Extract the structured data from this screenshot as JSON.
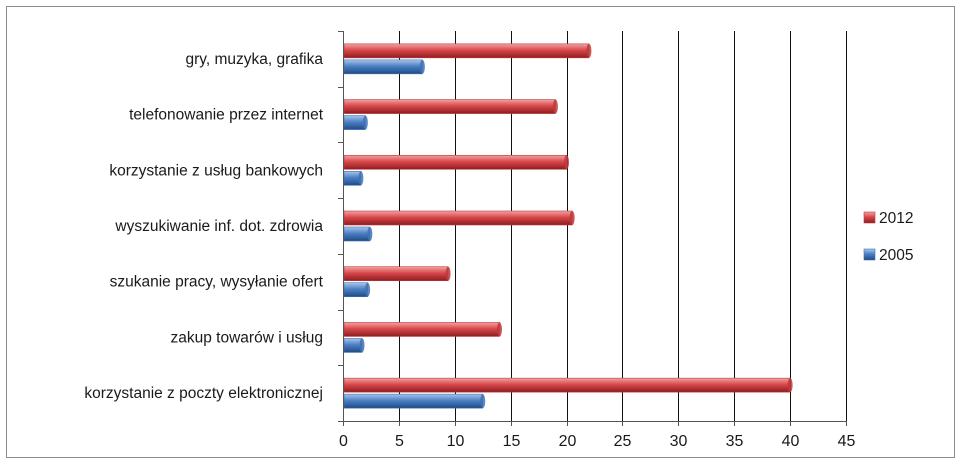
{
  "chart_data": {
    "type": "bar",
    "orientation": "horizontal",
    "title": "",
    "xlabel": "",
    "ylabel": "",
    "categories": [
      "gry, muzyka, grafika",
      "telefonowanie przez internet",
      "korzystanie z usług bankowych",
      "wyszukiwanie inf. dot. zdrowia",
      "szukanie pracy, wysyłanie ofert",
      "zakup towarów i usług",
      "korzystanie z poczty elektronicznej"
    ],
    "series": [
      {
        "name": "2012",
        "color": "#c0393b",
        "values": [
          22,
          19,
          20,
          20.5,
          9.4,
          14,
          40
        ]
      },
      {
        "name": "2005",
        "color": "#3f72b5",
        "values": [
          7.1,
          2,
          1.6,
          2.4,
          2.2,
          1.7,
          12.5
        ]
      }
    ],
    "xlim": [
      0,
      45
    ],
    "xticks": [
      "0",
      "5",
      "10",
      "15",
      "20",
      "25",
      "30",
      "35",
      "40",
      "45"
    ],
    "grid": "vertical",
    "legend_position": "right"
  }
}
